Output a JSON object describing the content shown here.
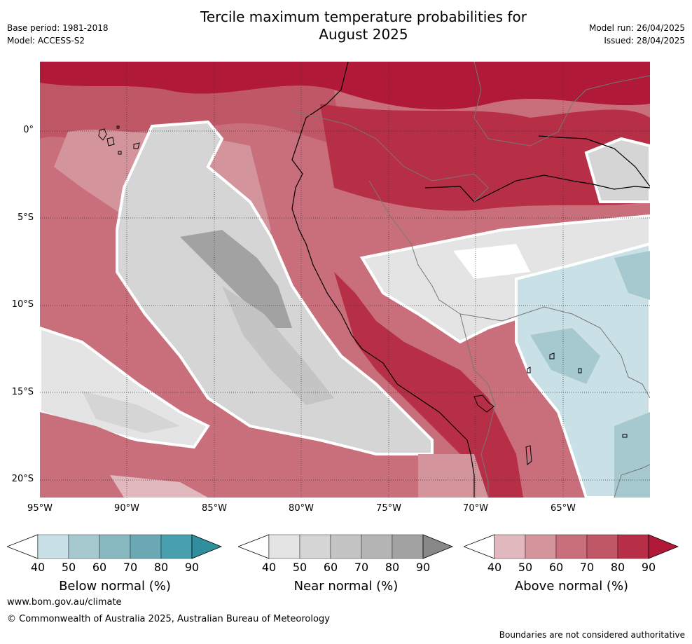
{
  "header": {
    "title_line1": "Tercile maximum temperature probabilities for",
    "title_line2": "August 2025",
    "base_period": "Base period: 1981-2018",
    "model": "Model: ACCESS-S2",
    "model_run": "Model run: 26/04/2025",
    "issued": "Issued: 28/04/2025"
  },
  "map": {
    "lat_labels": [
      "0°",
      "5°S",
      "10°S",
      "15°S",
      "20°S"
    ],
    "lon_labels": [
      "95°W",
      "90°W",
      "85°W",
      "80°W",
      "75°W",
      "70°W",
      "65°W"
    ]
  },
  "colorbars": [
    {
      "label": "Below normal (%)",
      "ticks": [
        "40",
        "50",
        "60",
        "70",
        "80",
        "90"
      ],
      "colors": [
        "#ffffff",
        "#c9e0e6",
        "#a6c9cf",
        "#88b9c1",
        "#6aa9b3",
        "#48a0ae",
        "#2f8f9e"
      ]
    },
    {
      "label": "Near normal (%)",
      "ticks": [
        "40",
        "50",
        "60",
        "70",
        "80",
        "90"
      ],
      "colors": [
        "#ffffff",
        "#e4e4e4",
        "#d5d5d5",
        "#c4c4c4",
        "#b4b4b4",
        "#a2a2a2",
        "#888888"
      ]
    },
    {
      "label": "Above normal (%)",
      "ticks": [
        "40",
        "50",
        "60",
        "70",
        "80",
        "90"
      ],
      "colors": [
        "#ffffff",
        "#e2b8bf",
        "#d4949c",
        "#c96f7b",
        "#c05766",
        "#b72f47",
        "#b01a38"
      ]
    }
  ],
  "footer": {
    "website": "www.bom.gov.au/climate",
    "copyright": "© Commonwealth of Australia 2025, Australian Bureau of Meteorology",
    "disclaimer": "Boundaries are not considered authoritative"
  }
}
